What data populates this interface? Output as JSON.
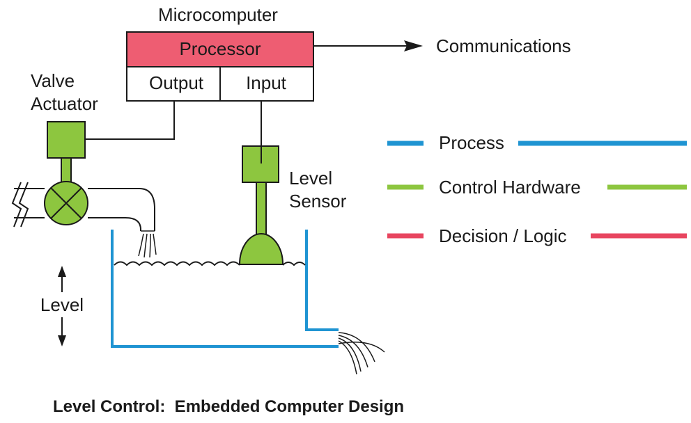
{
  "microcomputer": {
    "title": "Microcomputer",
    "processor": "Processor",
    "output": "Output",
    "input": "Input"
  },
  "labels": {
    "communications": "Communications",
    "valve_line1": "Valve",
    "valve_line2": "Actuator",
    "sensor_line1": "Level",
    "sensor_line2": "Sensor",
    "level": "Level"
  },
  "legend": [
    {
      "label": "Process",
      "color": "#1f94d2"
    },
    {
      "label": "Control Hardware",
      "color": "#8dc63f"
    },
    {
      "label": "Decision / Logic",
      "color": "#e8455f"
    }
  ],
  "colors": {
    "process": "#1f94d2",
    "control_hardware": "#8dc63f",
    "decision_logic": "#e8455f",
    "processor_fill": "#ee5d72"
  },
  "caption": "Level Control:  Embedded Computer Design"
}
